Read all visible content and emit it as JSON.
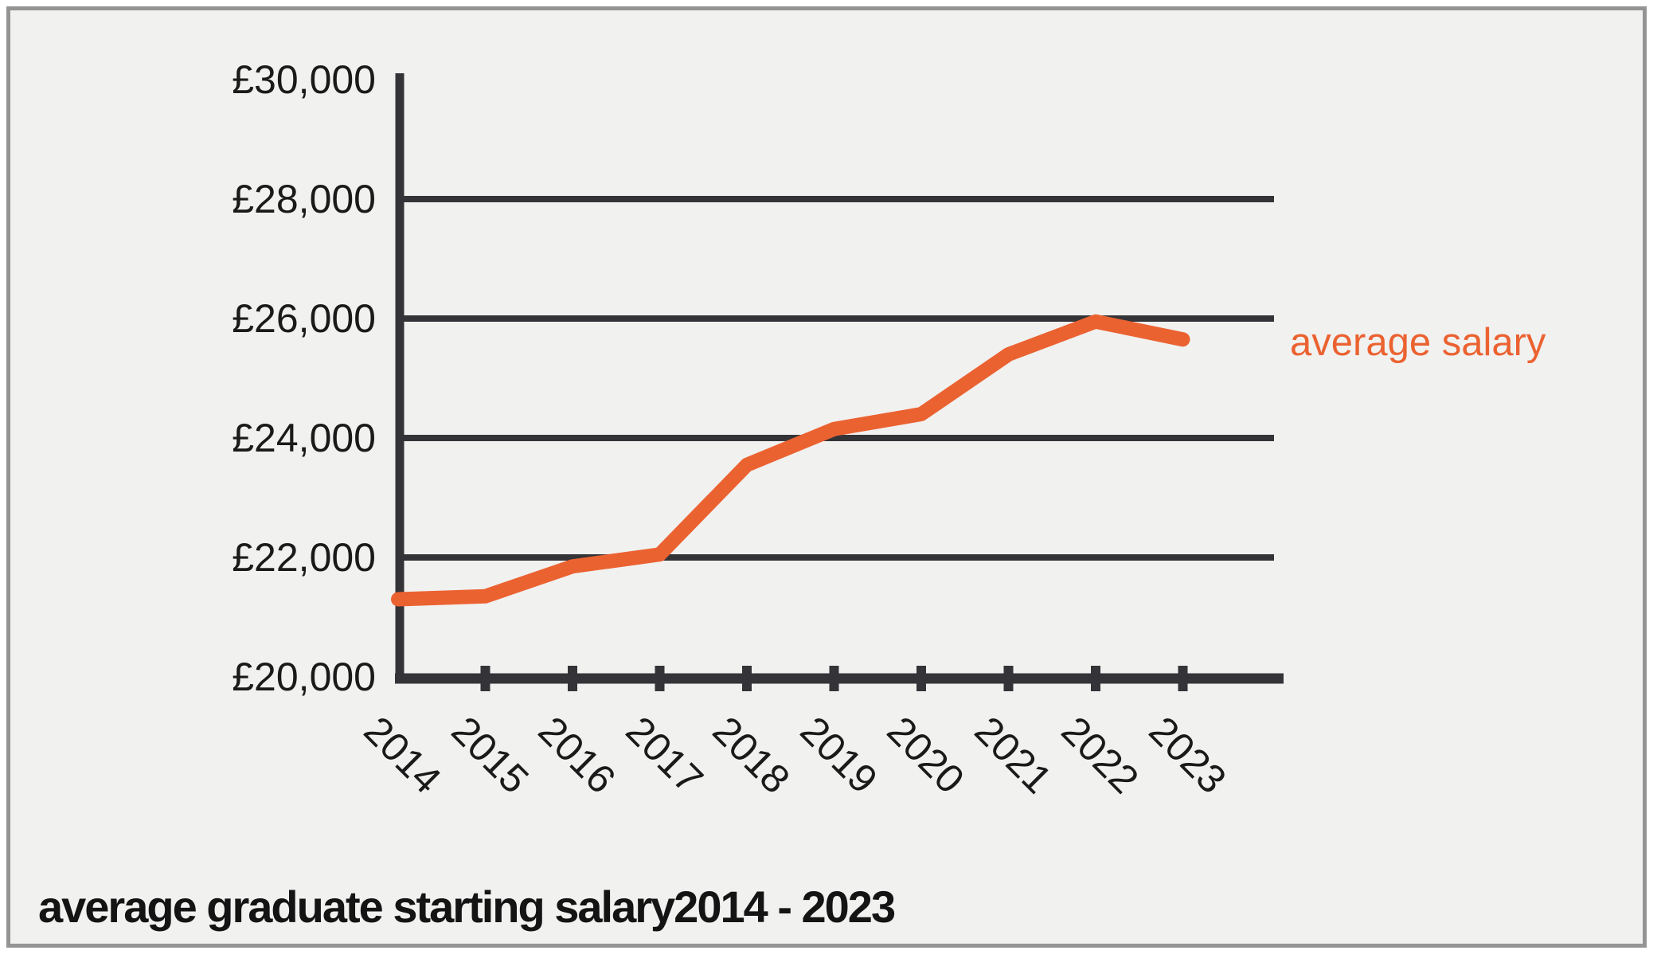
{
  "page": {
    "background": "#FFFFFF",
    "frame_border_color": "#949494",
    "frame_background": "#F1F1F0"
  },
  "chart_data": {
    "type": "line",
    "title": "average graduate starting salary2014 - 2023",
    "legend": {
      "label": "average salary",
      "position": "right of last data point",
      "color": "#EB6231"
    },
    "categories": [
      "2014",
      "2015",
      "2016",
      "2017",
      "2018",
      "2019",
      "2020",
      "2021",
      "2022",
      "2023"
    ],
    "series": [
      {
        "name": "average salary",
        "color": "#EB6231",
        "values": [
          21300,
          21350,
          21850,
          22050,
          23550,
          24150,
          24400,
          25400,
          25950,
          25650
        ]
      }
    ],
    "xlabel": "",
    "ylabel": "",
    "ylim": [
      20000,
      30000
    ],
    "ytick_values": [
      20000,
      22000,
      24000,
      26000,
      28000,
      30000
    ],
    "ytick_labels": [
      "£20,000",
      "£22,000",
      "£24,000",
      "£26,000",
      "£28,000",
      "£30,000"
    ],
    "gridlines_at": [
      22000,
      24000,
      26000,
      28000
    ],
    "grid": "horizontal",
    "x_tick_rotation_deg": 45,
    "axis_color": "#343337",
    "text_color": "#1A1A1A"
  }
}
